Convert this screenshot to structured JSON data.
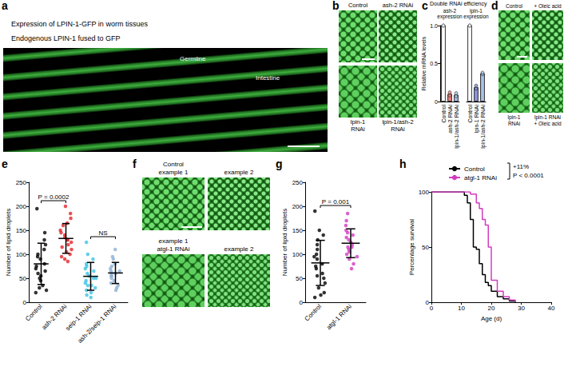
{
  "figure": {
    "a": {
      "panel": "a",
      "title": "Expression of LPIN-1-GFP in worm tissues",
      "subtitle": "Endogenous LPIN-1 fused to GFP",
      "labels": [
        "Germline",
        "Intestine"
      ]
    },
    "b": {
      "panel": "b",
      "images": [
        [
          "Control"
        ],
        [
          "ash-2 RNAi"
        ],
        [
          "lpin-1",
          "RNAi"
        ],
        [
          "lpin-1/ash-2",
          "RNAi"
        ]
      ]
    },
    "d": {
      "panel": "d",
      "images": [
        [
          "Control"
        ],
        [
          "+ Oleic acid"
        ],
        [
          "lpin-1",
          "RNAi"
        ],
        [
          "lpin-1 RNAi",
          "+ Oleic acid"
        ]
      ]
    },
    "f": {
      "panel": "f",
      "images": [
        [
          "Control",
          "example 1"
        ],
        [
          "example 2"
        ],
        [
          "example 1",
          "atgl-1 RNAi"
        ],
        [
          "example 2"
        ]
      ]
    }
  },
  "chart_data": [
    {
      "panel": "c",
      "type": "bar",
      "title": "Double RNAi efficiency",
      "subtitle": "ash-2 expression",
      "ylabel": "Relative mRNA levels",
      "categories": [
        "Control",
        "ash-2 RNAi",
        "lpin-1/ash-2 RNAi"
      ],
      "values": [
        1,
        0.1,
        0.09
      ],
      "points": [
        [
          1,
          1
        ],
        [
          0.08,
          0.12
        ],
        [
          0.07,
          0.11
        ]
      ],
      "colors": [
        "#ffffff",
        "#e8837e",
        "#a8c3e6"
      ],
      "ylim": [
        0,
        1
      ],
      "yticks": [
        0,
        0.5,
        {
          "value": 1,
          "label": "1.0"
        }
      ],
      "grid": false
    },
    {
      "type": "bar",
      "subtitle": "lpin-1 expression",
      "categories": [
        "Control",
        "lpin-1 RNAi",
        "lpin-1/ash-2 RNAi"
      ],
      "values": [
        1,
        0.19,
        0.37
      ],
      "points": [
        [
          1,
          1
        ],
        [
          0.17,
          0.21
        ],
        [
          0.36,
          0.38
        ]
      ],
      "colors": [
        "#ffffff",
        "#8c95db",
        "#a8c3e6"
      ],
      "ylim": [
        0,
        1
      ],
      "yticks": [
        0,
        0.5,
        {
          "value": 1,
          "label": "1.0"
        }
      ],
      "tick_labels": "x",
      "grid": false
    },
    {
      "panel": "e",
      "type": "scatter",
      "ylabel": "Number of lipid droplets",
      "categories": [
        "Control",
        "ash-2 RNAi",
        "seip-1 RNAi",
        "ash-2/seip-1 RNAi"
      ],
      "points": [
        [
          20,
          25,
          30,
          35,
          45,
          50,
          55,
          60,
          65,
          70,
          75,
          80,
          90,
          95,
          100,
          110,
          120,
          130,
          145,
          195
        ],
        [
          85,
          90,
          95,
          100,
          105,
          110,
          115,
          120,
          125,
          130,
          130,
          135,
          140,
          145,
          150,
          160,
          165,
          175,
          185,
          200
        ],
        [
          10,
          15,
          20,
          25,
          30,
          35,
          35,
          40,
          45,
          50,
          50,
          55,
          60,
          65,
          70,
          75,
          80,
          90,
          100,
          125
        ],
        [
          25,
          30,
          35,
          40,
          45,
          50,
          55,
          55,
          60,
          60,
          65,
          65,
          70,
          75,
          80,
          90,
          95,
          110
        ]
      ],
      "mean": [
        80,
        133,
        54,
        61
      ],
      "sd": [
        43,
        31,
        29,
        22
      ],
      "colors": [
        "#000000",
        "#e3262b",
        "#3cc3e6",
        "#8fb2d4"
      ],
      "annotations": [
        {
          "text": "P = 0.0002",
          "from": "Control",
          "to": "ash-2 RNAi"
        },
        {
          "text": "NS",
          "from": "seip-1 RNAi",
          "to": "ash-2/seip-1 RNAi"
        }
      ],
      "ylim": [
        0,
        250
      ],
      "yticks": [
        0,
        50,
        100,
        150,
        200,
        250
      ],
      "grid": false
    },
    {
      "panel": "g",
      "type": "scatter",
      "ylabel": "Number of lipid droplets",
      "categories": [
        "Control",
        "atgl-1 RNAi"
      ],
      "points": [
        [
          10,
          15,
          20,
          30,
          40,
          50,
          55,
          60,
          70,
          75,
          80,
          90,
          95,
          100,
          110,
          120,
          130,
          140,
          150,
          190
        ],
        [
          70,
          80,
          90,
          95,
          100,
          105,
          110,
          115,
          115,
          120,
          125,
          130,
          135,
          140,
          145,
          150,
          160,
          170,
          185
        ]
      ],
      "mean": [
        82,
        123
      ],
      "sd": [
        47,
        30
      ],
      "colors": [
        "#000000",
        "#d23cc0"
      ],
      "annotations": [
        {
          "text": "P = 0.001",
          "from": "Control",
          "to": "atgl-1 RNAi"
        }
      ],
      "ylim": [
        0,
        250
      ],
      "yticks": [
        0,
        50,
        100,
        150,
        200,
        250
      ],
      "grid": false
    },
    {
      "panel": "h",
      "type": "line",
      "xlabel": "Age (d)",
      "ylabel": "Percentage survival",
      "line_style": "step",
      "series": [
        {
          "name": "Control",
          "color": "#000000",
          "x": [
            0,
            10,
            11,
            12,
            13,
            14,
            15,
            16,
            17,
            18,
            19,
            20,
            22,
            24,
            26,
            28
          ],
          "values": [
            100,
            100,
            97,
            90,
            75,
            50,
            48,
            35,
            25,
            18,
            15,
            10,
            5,
            3,
            1,
            0
          ]
        },
        {
          "name": "atgl-1 RNAi",
          "color": "#d23cc0",
          "x": [
            0,
            12,
            13,
            15,
            16,
            17,
            18,
            19,
            20,
            22,
            24,
            26,
            28
          ],
          "values": [
            100,
            100,
            98,
            90,
            85,
            75,
            70,
            50,
            20,
            10,
            5,
            2,
            0
          ]
        }
      ],
      "xlim": [
        0,
        40
      ],
      "xticks": [
        0,
        10,
        20,
        30,
        40
      ],
      "ylim": [
        0,
        100
      ],
      "yticks": [
        0,
        50,
        100
      ],
      "legend": "upper right",
      "annotations": [
        {
          "text": "+11%"
        },
        {
          "text": "P < 0.0001"
        }
      ],
      "grid": false
    }
  ]
}
